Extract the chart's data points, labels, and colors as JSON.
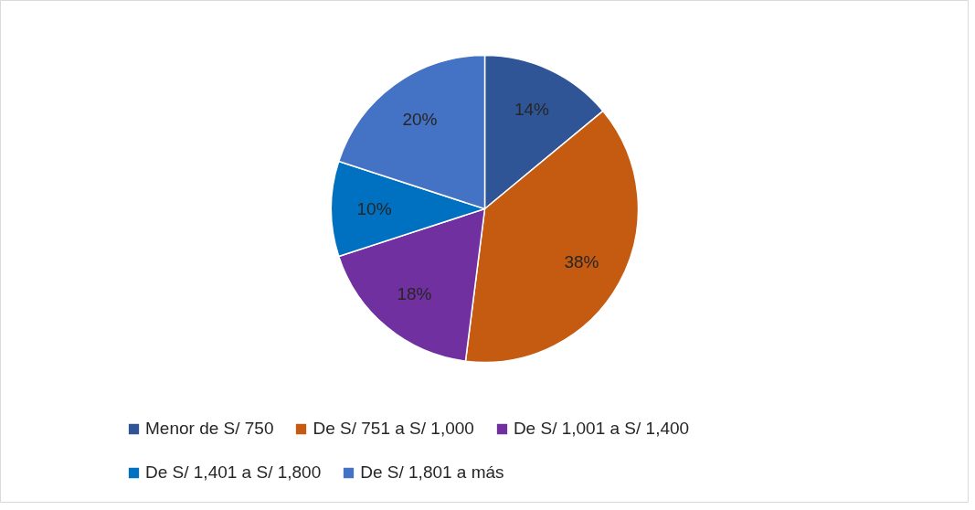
{
  "chart_data": {
    "type": "pie",
    "categories": [
      "Menor de S/ 750",
      "De S/ 751 a S/ 1,000",
      "De S/ 1,001 a S/ 1,400",
      "De S/ 1,401 a S/ 1,800",
      "De S/ 1,801 a más"
    ],
    "values": [
      14,
      38,
      18,
      10,
      20
    ],
    "colors": [
      "#2f5597",
      "#c55a11",
      "#7030a0",
      "#0070c0",
      "#4472c4"
    ],
    "value_labels": [
      "14%",
      "38%",
      "18%",
      "10%",
      "20%"
    ],
    "legend": "bottom"
  }
}
